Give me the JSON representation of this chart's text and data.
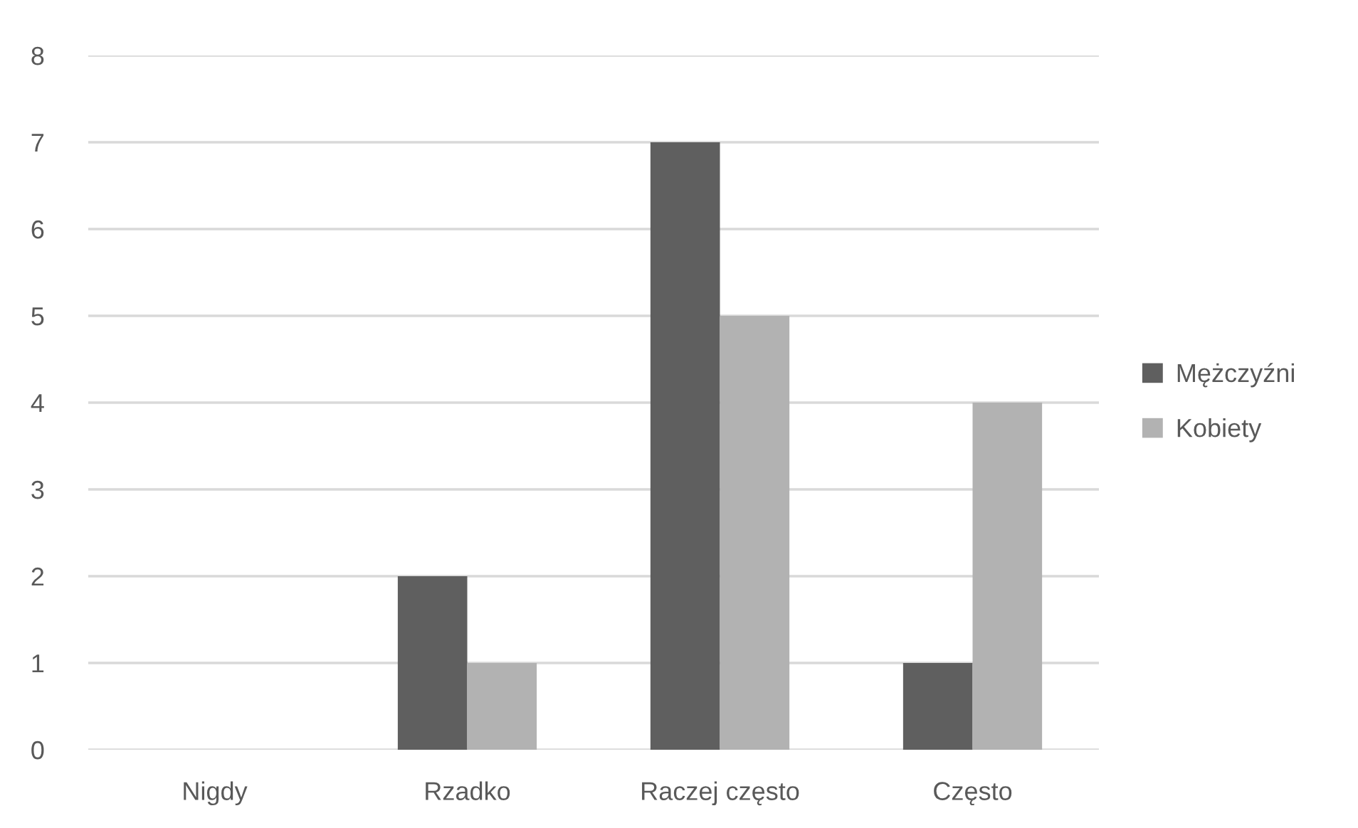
{
  "chart_data": {
    "type": "bar",
    "categories": [
      "Nigdy",
      "Rzadko",
      "Raczej często",
      "Często"
    ],
    "series": [
      {
        "name": "Mężczyźni",
        "color": "#5f5f5f",
        "values": [
          0,
          2,
          7,
          1
        ]
      },
      {
        "name": "Kobiety",
        "color": "#b2b2b2",
        "values": [
          0,
          1,
          5,
          4
        ]
      }
    ],
    "ylim": [
      0,
      8
    ],
    "yticks": [
      0,
      1,
      2,
      3,
      4,
      5,
      6,
      7,
      8
    ],
    "grid": "y",
    "legend": "right"
  }
}
